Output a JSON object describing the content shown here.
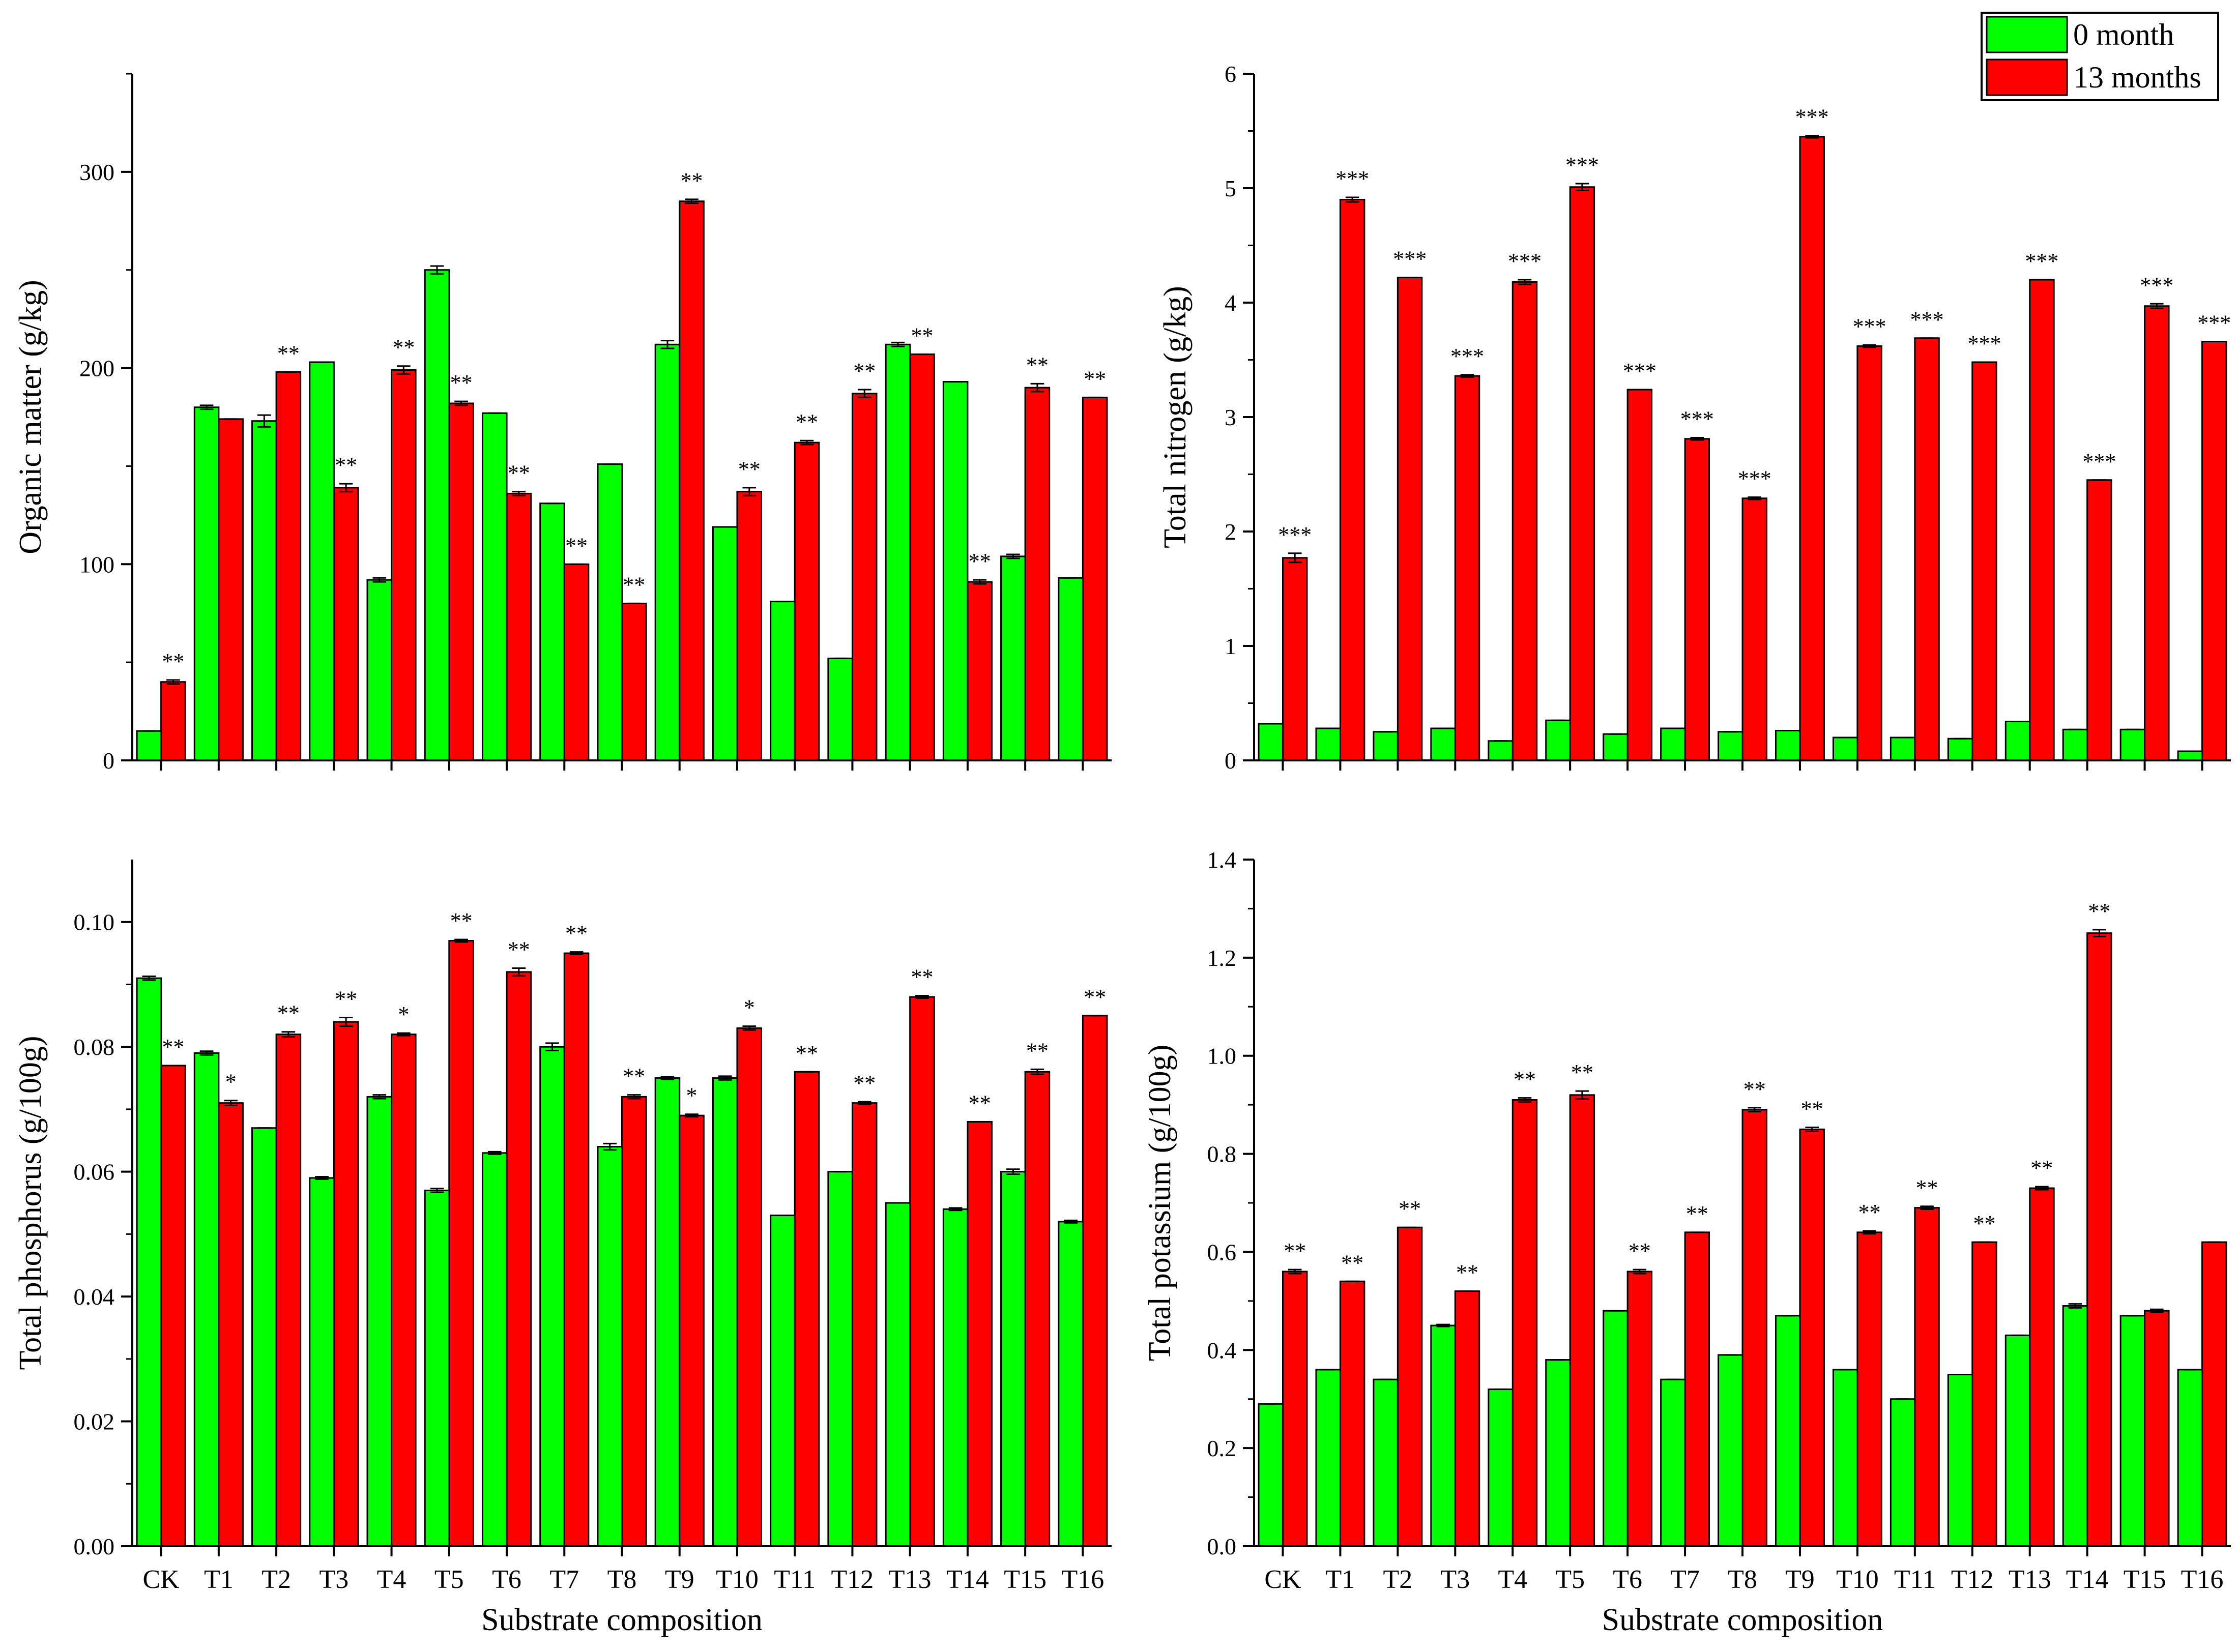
{
  "colors": {
    "month0": "#00ff00",
    "month13": "#ff0000",
    "axis": "#000000"
  },
  "legend": {
    "items": [
      {
        "label": "0 month",
        "color": "#00ff00"
      },
      {
        "label": "13 months",
        "color": "#ff0000"
      }
    ]
  },
  "chart_data": [
    {
      "id": "organic-matter",
      "type": "bar",
      "title": "",
      "xlabel": "",
      "ylabel": "Organic matter (g/kg)",
      "ylim": [
        0,
        350
      ],
      "yticks": [
        0,
        100,
        200,
        300
      ],
      "tick_labels": [
        "0",
        "100",
        "200",
        "300"
      ],
      "show_category_labels": false,
      "categories": [
        "CK",
        "T1",
        "T2",
        "T3",
        "T4",
        "T5",
        "T6",
        "T7",
        "T8",
        "T9",
        "T10",
        "T11",
        "T12",
        "T13",
        "T14",
        "T15",
        "T16"
      ],
      "series": [
        {
          "name": "0 month",
          "values": [
            15,
            180,
            173,
            203,
            92,
            250,
            177,
            131,
            151,
            212,
            119,
            81,
            52,
            212,
            193,
            104,
            93
          ],
          "errors": [
            0,
            1,
            3,
            0,
            1,
            2,
            0,
            0,
            0,
            2,
            0,
            0,
            0,
            1,
            0,
            1,
            0
          ]
        },
        {
          "name": "13 months",
          "values": [
            40,
            174,
            198,
            139,
            199,
            182,
            136,
            100,
            80,
            285,
            137,
            162,
            187,
            207,
            91,
            190,
            185
          ],
          "errors": [
            1,
            0,
            0,
            2,
            2,
            1,
            1,
            0,
            0,
            1,
            2,
            1,
            2,
            0,
            1,
            2,
            0
          ]
        }
      ],
      "annotations": [
        "**",
        "",
        "**",
        "**",
        "**",
        "**",
        "**",
        "**",
        "**",
        "**",
        "**",
        "**",
        "**",
        "**",
        "**",
        "**",
        "**"
      ]
    },
    {
      "id": "total-nitrogen",
      "type": "bar",
      "title": "",
      "xlabel": "",
      "ylabel": "Total nitrogen (g/kg)",
      "ylim": [
        0,
        6
      ],
      "yticks": [
        0,
        1,
        2,
        3,
        4,
        5,
        6
      ],
      "tick_labels": [
        "0",
        "1",
        "2",
        "3",
        "4",
        "5",
        "6"
      ],
      "show_category_labels": false,
      "categories": [
        "CK",
        "T1",
        "T2",
        "T3",
        "T4",
        "T5",
        "T6",
        "T7",
        "T8",
        "T9",
        "T10",
        "T11",
        "T12",
        "T13",
        "T14",
        "T15",
        "T16"
      ],
      "series": [
        {
          "name": "0 month",
          "values": [
            0.32,
            0.28,
            0.25,
            0.28,
            0.17,
            0.35,
            0.23,
            0.28,
            0.25,
            0.26,
            0.2,
            0.2,
            0.19,
            0.34,
            0.27,
            0.27,
            0.08
          ],
          "errors": [
            0,
            0,
            0,
            0,
            0,
            0,
            0,
            0,
            0,
            0,
            0,
            0,
            0,
            0,
            0,
            0,
            0
          ]
        },
        {
          "name": "13 months",
          "values": [
            1.77,
            4.9,
            4.22,
            3.36,
            4.18,
            5.01,
            3.24,
            2.81,
            2.29,
            5.45,
            3.62,
            3.69,
            3.48,
            4.2,
            2.45,
            3.97,
            3.66
          ],
          "errors": [
            0.04,
            0.02,
            0,
            0.01,
            0.02,
            0.03,
            0,
            0.01,
            0.01,
            0.01,
            0.01,
            0,
            0,
            0,
            0,
            0.02,
            0
          ]
        }
      ],
      "annotations": [
        "***",
        "***",
        "***",
        "***",
        "***",
        "***",
        "***",
        "***",
        "***",
        "***",
        "***",
        "***",
        "***",
        "***",
        "***",
        "***",
        "***"
      ]
    },
    {
      "id": "total-phosphorus",
      "type": "bar",
      "title": "",
      "xlabel": "Substrate composition",
      "ylabel": "Total phosphorus (g/100g)",
      "ylim": [
        0,
        0.11
      ],
      "yticks": [
        0,
        0.02,
        0.04,
        0.06,
        0.08,
        0.1
      ],
      "tick_labels": [
        "0.00",
        "0.02",
        "0.04",
        "0.06",
        "0.08",
        "0.10"
      ],
      "show_category_labels": true,
      "categories": [
        "CK",
        "T1",
        "T2",
        "T3",
        "T4",
        "T5",
        "T6",
        "T7",
        "T8",
        "T9",
        "T10",
        "T11",
        "T12",
        "T13",
        "T14",
        "T15",
        "T16"
      ],
      "series": [
        {
          "name": "0 month",
          "values": [
            0.091,
            0.079,
            0.067,
            0.059,
            0.072,
            0.057,
            0.063,
            0.08,
            0.064,
            0.075,
            0.075,
            0.053,
            0.06,
            0.055,
            0.054,
            0.06,
            0.052
          ],
          "errors": [
            0.0003,
            0.0003,
            0,
            0.0002,
            0.0003,
            0.0003,
            0.0002,
            0.0006,
            0.0005,
            0.0002,
            0.0003,
            0,
            0,
            0,
            0.0002,
            0.0004,
            0.0002
          ]
        },
        {
          "name": "13 months",
          "values": [
            0.077,
            0.071,
            0.082,
            0.084,
            0.082,
            0.097,
            0.092,
            0.095,
            0.072,
            0.069,
            0.083,
            0.076,
            0.071,
            0.088,
            0.068,
            0.076,
            0.085
          ],
          "errors": [
            0,
            0.0004,
            0.0004,
            0.0007,
            0.0002,
            0.0002,
            0.0006,
            0.0002,
            0.0003,
            0.0002,
            0.0003,
            0,
            0.0002,
            0.0002,
            0,
            0.0004,
            0
          ]
        }
      ],
      "annotations": [
        "**",
        "*",
        "**",
        "**",
        "*",
        "**",
        "**",
        "**",
        "**",
        "*",
        "*",
        "**",
        "**",
        "**",
        "**",
        "**",
        "**"
      ]
    },
    {
      "id": "total-potassium",
      "type": "bar",
      "title": "",
      "xlabel": "Substrate composition",
      "ylabel": "Total potassium (g/100g)",
      "ylim": [
        0,
        1.4
      ],
      "yticks": [
        0,
        0.2,
        0.4,
        0.6,
        0.8,
        1.0,
        1.2,
        1.4
      ],
      "tick_labels": [
        "0.0",
        "0.2",
        "0.4",
        "0.6",
        "0.8",
        "1.0",
        "1.2",
        "1.4"
      ],
      "show_category_labels": true,
      "categories": [
        "CK",
        "T1",
        "T2",
        "T3",
        "T4",
        "T5",
        "T6",
        "T7",
        "T8",
        "T9",
        "T10",
        "T11",
        "T12",
        "T13",
        "T14",
        "T15",
        "T16"
      ],
      "series": [
        {
          "name": "0 month",
          "values": [
            0.29,
            0.36,
            0.34,
            0.45,
            0.32,
            0.38,
            0.48,
            0.34,
            0.39,
            0.47,
            0.36,
            0.3,
            0.35,
            0.43,
            0.49,
            0.47,
            0.36
          ],
          "errors": [
            0,
            0,
            0,
            0.002,
            0,
            0,
            0,
            0,
            0,
            0,
            0,
            0,
            0,
            0,
            0.004,
            0,
            0
          ]
        },
        {
          "name": "13 months",
          "values": [
            0.56,
            0.54,
            0.65,
            0.52,
            0.91,
            0.92,
            0.56,
            0.64,
            0.89,
            0.85,
            0.64,
            0.69,
            0.62,
            0.73,
            1.25,
            0.48,
            0.62
          ],
          "errors": [
            0.004,
            0,
            0,
            0,
            0.004,
            0.008,
            0.004,
            0,
            0.004,
            0.004,
            0.003,
            0.003,
            0,
            0.003,
            0.007,
            0.003,
            0
          ]
        }
      ],
      "annotations": [
        "**",
        "**",
        "**",
        "**",
        "**",
        "**",
        "**",
        "**",
        "**",
        "**",
        "**",
        "**",
        "**",
        "**",
        "**",
        "",
        ""
      ]
    }
  ]
}
